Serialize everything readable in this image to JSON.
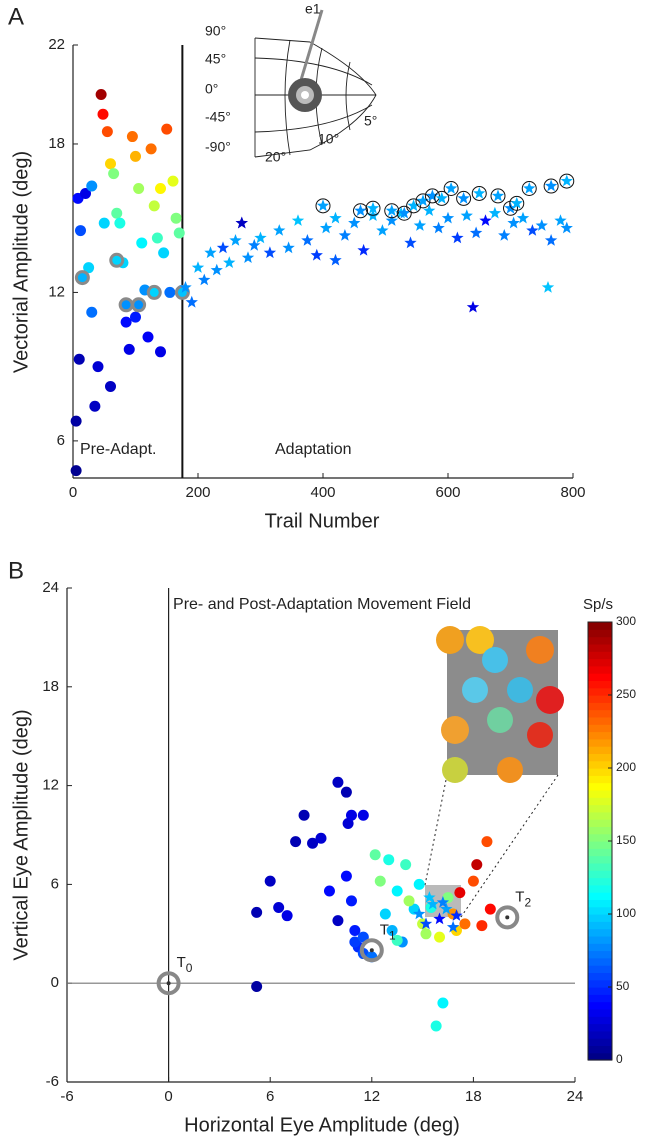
{
  "chart_data": [
    {
      "type": "scatter",
      "panel": "A",
      "ylabel": "Vectorial Amplitude (deg)",
      "xlabel": "Trail Number",
      "xlim": [
        0,
        800
      ],
      "ylim": [
        4.5,
        22
      ],
      "xticks": [
        0,
        200,
        400,
        600,
        800
      ],
      "yticks": [
        6,
        12,
        18,
        22
      ],
      "clim": [
        0,
        300
      ],
      "divider": 175,
      "annotations": [
        "Pre-Adapt.",
        "Adaptation"
      ],
      "inset_labels": [
        "90°",
        "45°",
        "0°",
        "-45°",
        "-90°",
        "20°",
        "10°",
        "5°",
        "e1"
      ],
      "series": [
        {
          "marker": "circle",
          "x": [
            5,
            5,
            10,
            8,
            12,
            20,
            25,
            30,
            35,
            40,
            45,
            48,
            55,
            60,
            65,
            70,
            75,
            80,
            85,
            90,
            95,
            100,
            105,
            110,
            115,
            120,
            125,
            130,
            135,
            140,
            145,
            150,
            155,
            160,
            165,
            170,
            60,
            100,
            140,
            30,
            50
          ],
          "y": [
            4.8,
            6.8,
            9.3,
            15.8,
            14.5,
            16,
            13,
            11.2,
            7.4,
            9,
            20,
            19.2,
            18.5,
            17.2,
            16.8,
            15.2,
            14.8,
            13.2,
            10.8,
            9.7,
            18.3,
            17.5,
            16.2,
            14,
            12.1,
            10.2,
            17.8,
            15.5,
            14.2,
            16.2,
            13.6,
            18.6,
            12,
            16.5,
            15,
            14.4,
            8.2,
            11,
            9.6,
            16.3,
            14.8
          ],
          "c": [
            5,
            10,
            15,
            40,
            60,
            30,
            100,
            70,
            20,
            25,
            290,
            260,
            240,
            200,
            150,
            140,
            120,
            100,
            40,
            30,
            230,
            210,
            160,
            110,
            80,
            35,
            230,
            170,
            130,
            190,
            100,
            240,
            70,
            180,
            150,
            140,
            20,
            45,
            30,
            80,
            100
          ]
        },
        {
          "marker": "circle-gray-ring",
          "x": [
            15,
            70,
            85,
            105,
            130,
            175
          ],
          "y": [
            12.6,
            13.3,
            11.5,
            11.5,
            12,
            12
          ],
          "c": [
            90,
            100,
            80,
            80,
            100,
            95
          ]
        },
        {
          "marker": "star",
          "x": [
            180,
            190,
            200,
            210,
            220,
            230,
            240,
            250,
            260,
            270,
            280,
            290,
            300,
            315,
            330,
            345,
            360,
            375,
            390,
            405,
            420,
            435,
            450,
            465,
            480,
            495,
            510,
            525,
            540,
            555,
            570,
            585,
            600,
            615,
            630,
            645,
            660,
            675,
            690,
            705,
            720,
            735,
            750,
            765,
            780,
            790,
            270,
            640,
            760,
            420
          ],
          "y": [
            12.2,
            11.6,
            13,
            12.5,
            13.6,
            12.9,
            13.8,
            13.2,
            14.1,
            14.8,
            13.4,
            13.9,
            14.2,
            13.6,
            14.5,
            13.8,
            14.9,
            14.1,
            13.5,
            14.6,
            15,
            14.3,
            14.8,
            13.7,
            15.1,
            14.5,
            14.9,
            15.2,
            14,
            14.7,
            15.3,
            14.6,
            15,
            14.2,
            15.1,
            14.4,
            14.9,
            15.2,
            14.3,
            14.8,
            15,
            14.5,
            14.7,
            14.1,
            14.9,
            14.6,
            14.8,
            11.4,
            12.2,
            13.3
          ],
          "c": [
            80,
            70,
            90,
            75,
            85,
            80,
            60,
            90,
            85,
            20,
            80,
            75,
            90,
            60,
            85,
            80,
            95,
            70,
            55,
            85,
            90,
            75,
            80,
            50,
            90,
            85,
            80,
            95,
            60,
            85,
            90,
            75,
            80,
            55,
            85,
            70,
            40,
            90,
            75,
            80,
            85,
            60,
            80,
            70,
            85,
            80,
            20,
            30,
            95,
            65
          ]
        },
        {
          "marker": "star-ring",
          "x": [
            400,
            460,
            480,
            510,
            530,
            545,
            560,
            575,
            590,
            605,
            625,
            650,
            680,
            700,
            710,
            730,
            765,
            790
          ],
          "y": [
            15.5,
            15.3,
            15.4,
            15.3,
            15.2,
            15.5,
            15.7,
            15.9,
            15.8,
            16.2,
            15.8,
            16,
            15.9,
            15.4,
            15.6,
            16.2,
            16.3,
            16.5
          ],
          "c": [
            85,
            80,
            90,
            85,
            80,
            90,
            85,
            80,
            90,
            85,
            80,
            90,
            85,
            80,
            90,
            85,
            80,
            90
          ]
        }
      ]
    },
    {
      "type": "scatter",
      "panel": "B",
      "title": "Pre- and Post-Adaptation Movement Field",
      "ylabel": "Vertical Eye Amplitude (deg)",
      "xlabel": "Horizontal Eye Amplitude (deg)",
      "xlim": [
        -6,
        24
      ],
      "ylim": [
        -6,
        24
      ],
      "xticks": [
        -6,
        0,
        6,
        12,
        18,
        24
      ],
      "yticks": [
        -6,
        0,
        6,
        12,
        18,
        24
      ],
      "clim": [
        0,
        300
      ],
      "colorbar": {
        "label": "Sp/s",
        "ticks": [
          0,
          50,
          100,
          150,
          200,
          250,
          300
        ]
      },
      "targets": [
        {
          "label": "T",
          "sub": "0",
          "x": 0,
          "y": 0
        },
        {
          "label": "T",
          "sub": "1",
          "x": 12,
          "y": 2
        },
        {
          "label": "T",
          "sub": "2",
          "x": 20,
          "y": 4
        }
      ],
      "series": [
        {
          "marker": "circle",
          "x": [
            5.2,
            5.2,
            6,
            6.5,
            7,
            7.5,
            8,
            8.5,
            9,
            9.5,
            10,
            10.5,
            10.6,
            10.8,
            11,
            11.2,
            11.5,
            12,
            10,
            10.5,
            11,
            11.5,
            12.2,
            12.5,
            13,
            13.5,
            14,
            14.5,
            13.2,
            13.8,
            14.2,
            15,
            15.5,
            16,
            16.5,
            17,
            12.8,
            13.5,
            14.8,
            15.2,
            16.8,
            17.5,
            18,
            18.5,
            18.8,
            19,
            17.2,
            18.2,
            16.2,
            15.8,
            11.5,
            10.8
          ],
          "y": [
            -0.2,
            4.3,
            6.2,
            4.6,
            4.1,
            8.6,
            10.2,
            8.5,
            8.8,
            5.6,
            12.2,
            11.6,
            9.7,
            10.2,
            3.2,
            2.2,
            1.8,
            1.6,
            3.8,
            6.5,
            2.5,
            10.2,
            7.8,
            6.2,
            7.5,
            5.6,
            7.2,
            4.5,
            3.2,
            2.5,
            5,
            3.6,
            4.6,
            2.8,
            5.2,
            3.2,
            4.2,
            2.6,
            6,
            3,
            4.2,
            3.6,
            6.2,
            3.5,
            8.6,
            4.5,
            5.5,
            7.2,
            -1.2,
            -2.6,
            2.8,
            5
          ],
          "c": [
            10,
            15,
            20,
            25,
            30,
            15,
            15,
            20,
            25,
            40,
            20,
            15,
            25,
            30,
            45,
            50,
            60,
            70,
            20,
            40,
            55,
            30,
            140,
            150,
            120,
            110,
            130,
            100,
            90,
            80,
            160,
            170,
            120,
            180,
            150,
            200,
            100,
            130,
            110,
            160,
            220,
            230,
            240,
            250,
            240,
            260,
            270,
            280,
            110,
            120,
            60,
            45
          ]
        },
        {
          "marker": "star",
          "x": [
            14.8,
            15.2,
            15.6,
            16,
            16.4,
            16.8,
            15.4,
            16.2,
            17
          ],
          "y": [
            4.2,
            3.6,
            4.8,
            3.9,
            4.5,
            3.4,
            5.2,
            4.9,
            4.1
          ],
          "c": [
            80,
            60,
            90,
            40,
            85,
            70,
            95,
            75,
            50
          ]
        }
      ]
    }
  ]
}
